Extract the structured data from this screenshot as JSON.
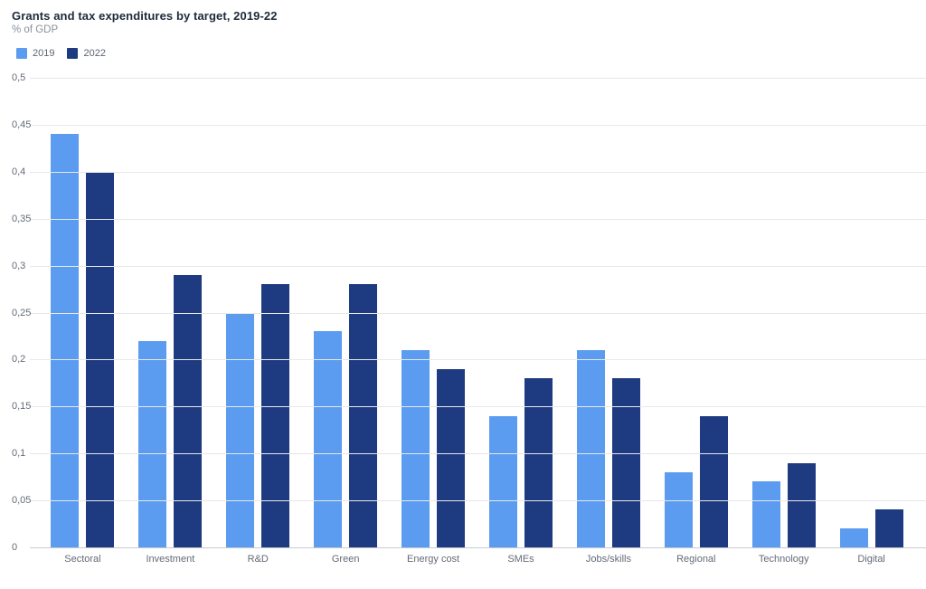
{
  "header": {
    "title": "Grants and tax expenditures by target, 2019-22",
    "subtitle": "% of GDP"
  },
  "chart_data": {
    "type": "bar",
    "title": "Grants and tax expenditures by target, 2019-22",
    "ylabel": "% of GDP",
    "xlabel": "",
    "categories": [
      "Sectoral",
      "Investment",
      "R&D",
      "Green",
      "Energy cost",
      "SMEs",
      "Jobs/skills",
      "Regional",
      "Technology",
      "Digital"
    ],
    "series": [
      {
        "name": "2019",
        "color": "#5b9bf0",
        "values": [
          0.44,
          0.22,
          0.25,
          0.23,
          0.21,
          0.14,
          0.21,
          0.08,
          0.07,
          0.02
        ]
      },
      {
        "name": "2022",
        "color": "#1e3a80",
        "values": [
          0.4,
          0.29,
          0.28,
          0.28,
          0.19,
          0.18,
          0.18,
          0.14,
          0.09,
          0.04
        ]
      }
    ],
    "ylim": [
      0,
      0.5
    ],
    "ytick_step": 0.05,
    "yticks": [
      {
        "value": 0,
        "label": "0"
      },
      {
        "value": 0.05,
        "label": "0,05"
      },
      {
        "value": 0.1,
        "label": "0,1"
      },
      {
        "value": 0.15,
        "label": "0,15"
      },
      {
        "value": 0.2,
        "label": "0,2"
      },
      {
        "value": 0.25,
        "label": "0,25"
      },
      {
        "value": 0.3,
        "label": "0,3"
      },
      {
        "value": 0.35,
        "label": "0,35"
      },
      {
        "value": 0.4,
        "label": "0,4"
      },
      {
        "value": 0.45,
        "label": "0,45"
      },
      {
        "value": 0.5,
        "label": "0,5"
      }
    ],
    "grid": true,
    "legend_position": "top-left",
    "colors": {
      "gridline": "#e6e8ea",
      "axis_line": "#c6cbd1",
      "title_text": "#1d2a3a",
      "muted_text": "#8a919c",
      "tick_text": "#636b77"
    }
  }
}
